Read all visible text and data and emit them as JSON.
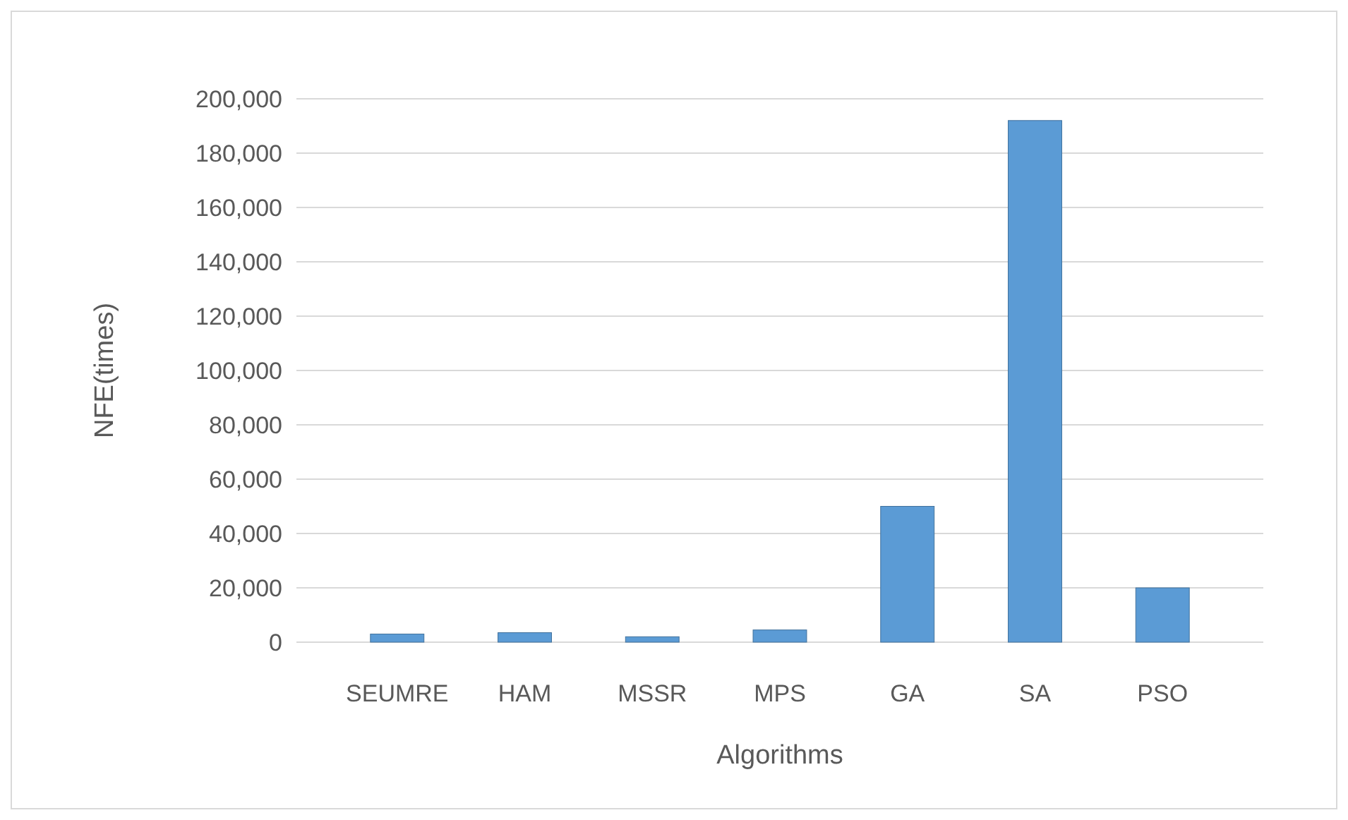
{
  "chart_data": {
    "type": "bar",
    "xlabel": "Algorithms",
    "ylabel": "NFE(times)",
    "categories": [
      "SEUMRE",
      "HAM",
      "MSSR",
      "MPS",
      "GA",
      "SA",
      "PSO"
    ],
    "values": [
      3000,
      3500,
      2000,
      4500,
      50000,
      192000,
      20000
    ],
    "color": "#5b9bd5",
    "ylim": [
      0,
      200000
    ],
    "yticks": [
      {
        "value": 0,
        "label": "0"
      },
      {
        "value": 20000,
        "label": "20,000"
      },
      {
        "value": 40000,
        "label": "40,000"
      },
      {
        "value": 60000,
        "label": "60,000"
      },
      {
        "value": 80000,
        "label": "80,000"
      },
      {
        "value": 100000,
        "label": "100,000"
      },
      {
        "value": 120000,
        "label": "120,000"
      },
      {
        "value": 140000,
        "label": "140,000"
      },
      {
        "value": 160000,
        "label": "160,000"
      },
      {
        "value": 180000,
        "label": "180,000"
      },
      {
        "value": 200000,
        "label": "200,000"
      }
    ],
    "grid": "y"
  }
}
